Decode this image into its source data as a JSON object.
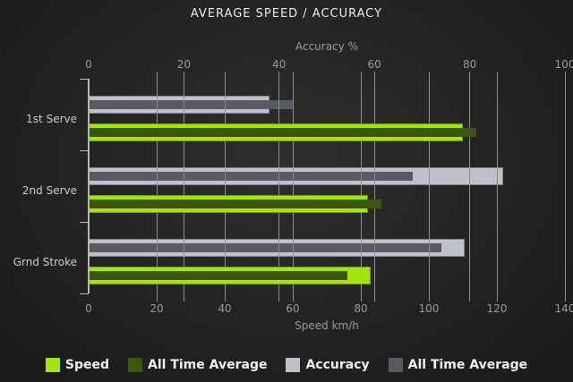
{
  "title": "AVERAGE SPEED / ACCURACY",
  "colors": {
    "background_center": "#2e2e2e",
    "background_edge": "#1a1a1a",
    "gridline": "#8f8f8f",
    "axis_line": "#b5b5b5",
    "tick_text": "#9a9a9a",
    "category_text": "#cccccc",
    "title_text": "#e9e9e9",
    "legend_text": "#f2f2f2"
  },
  "chart_data": {
    "type": "bar",
    "orientation": "horizontal",
    "title": "AVERAGE SPEED / ACCURACY",
    "categories": [
      "1st Serve",
      "2nd Serve",
      "Grnd Stroke"
    ],
    "series": [
      {
        "name": "Speed",
        "axis": "bottom",
        "role": "current",
        "color": "#a3e30e",
        "values": [
          110,
          82,
          83
        ]
      },
      {
        "name": "All Time Average",
        "axis": "bottom",
        "role": "average",
        "color": "#3d540d",
        "values": [
          114,
          86,
          76
        ]
      },
      {
        "name": "Accuracy",
        "axis": "top",
        "role": "current",
        "color": "#bcc2c7",
        "values": [
          38,
          87,
          79
        ]
      },
      {
        "name": "All Time Average",
        "axis": "top",
        "role": "average",
        "color": "#545b63",
        "values": [
          43,
          68,
          74
        ]
      }
    ],
    "axes": {
      "top": {
        "label": "Accuracy %",
        "min": 0,
        "max": 100,
        "ticks": [
          0,
          20,
          40,
          60,
          80,
          100
        ]
      },
      "bottom": {
        "label": "Speed km/h",
        "min": 0,
        "max": 140,
        "ticks": [
          0,
          20,
          40,
          60,
          80,
          100,
          120,
          140
        ]
      }
    },
    "grid": true,
    "legend_position": "bottom",
    "legend": [
      "Speed",
      "All Time Average",
      "Accuracy",
      "All Time Average"
    ]
  }
}
